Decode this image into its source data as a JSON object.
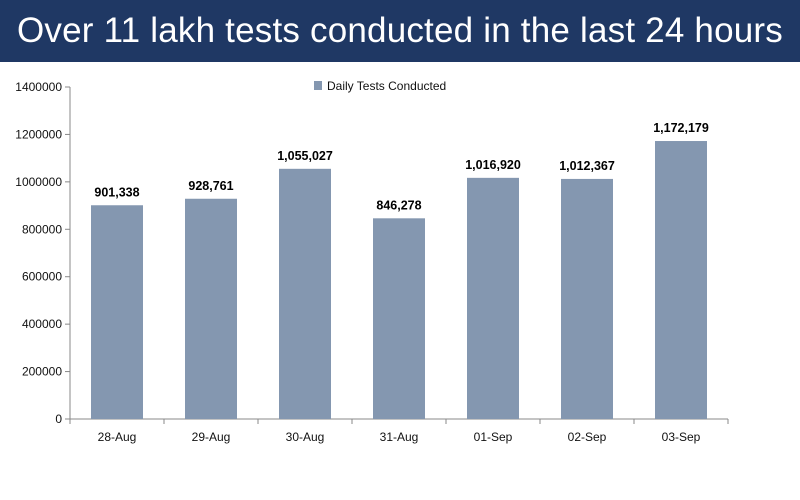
{
  "header": {
    "title": "Over 11 lakh tests conducted in the last 24 hours"
  },
  "colors": {
    "banner": "#1f3864",
    "bar": "#8497b0",
    "axis": "#888888"
  },
  "chart_data": {
    "type": "bar",
    "title": "",
    "xlabel": "",
    "ylabel": "",
    "categories": [
      "28-Aug",
      "29-Aug",
      "30-Aug",
      "31-Aug",
      "01-Sep",
      "02-Sep",
      "03-Sep"
    ],
    "series": [
      {
        "name": "Daily Tests Conducted",
        "values": [
          901338,
          928761,
          1055027,
          846278,
          1016920,
          1012367,
          1172179
        ],
        "labels": [
          "901,338",
          "928,761",
          "1,055,027",
          "846,278",
          "1,016,920",
          "1,012,367",
          "1,172,179"
        ]
      }
    ],
    "ylim": [
      0,
      1400000
    ],
    "yticks": [
      0,
      200000,
      400000,
      600000,
      800000,
      1000000,
      1200000,
      1400000
    ],
    "ytick_labels": [
      "0",
      "200000",
      "400000",
      "600000",
      "800000",
      "1000000",
      "1200000",
      "1400000"
    ],
    "grid": false,
    "legend_position": "top-center"
  }
}
